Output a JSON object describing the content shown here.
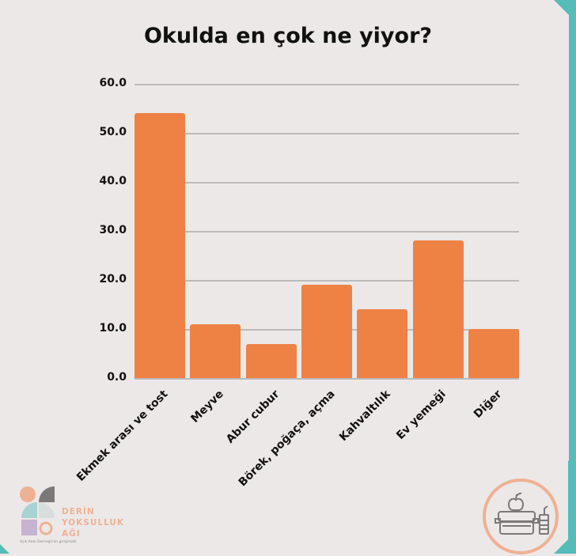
{
  "title": "Okulda en çok ne yiyor?",
  "chart_data": {
    "type": "bar",
    "title": "Okulda en çok ne yiyor?",
    "categories": [
      "Ekmek arası ve tost",
      "Meyve",
      "Abur cubur",
      "Börek, poğaça, açma",
      "Kahvaltılık",
      "Ev yemeği",
      "Diğer"
    ],
    "values": [
      54,
      11,
      7,
      19,
      14,
      28,
      10
    ],
    "xlabel": "",
    "ylabel": "",
    "ylim": [
      0,
      60
    ],
    "yticks": [
      "0.0",
      "10.0",
      "20.0",
      "30.0",
      "40.0",
      "50.0",
      "60.0"
    ],
    "grid": true,
    "legend": null,
    "bar_color": "#ee8144"
  },
  "logo": {
    "line1": "DERİN",
    "line2": "YOKSULLUK",
    "line3": "AĞI",
    "subtitle": "Açık Alan Derneği'nin girişimidir."
  },
  "colors": {
    "background": "#ece8e7",
    "accent_teal": "#56bcb7",
    "accent_peach": "#efb193",
    "bar": "#ee8144"
  }
}
